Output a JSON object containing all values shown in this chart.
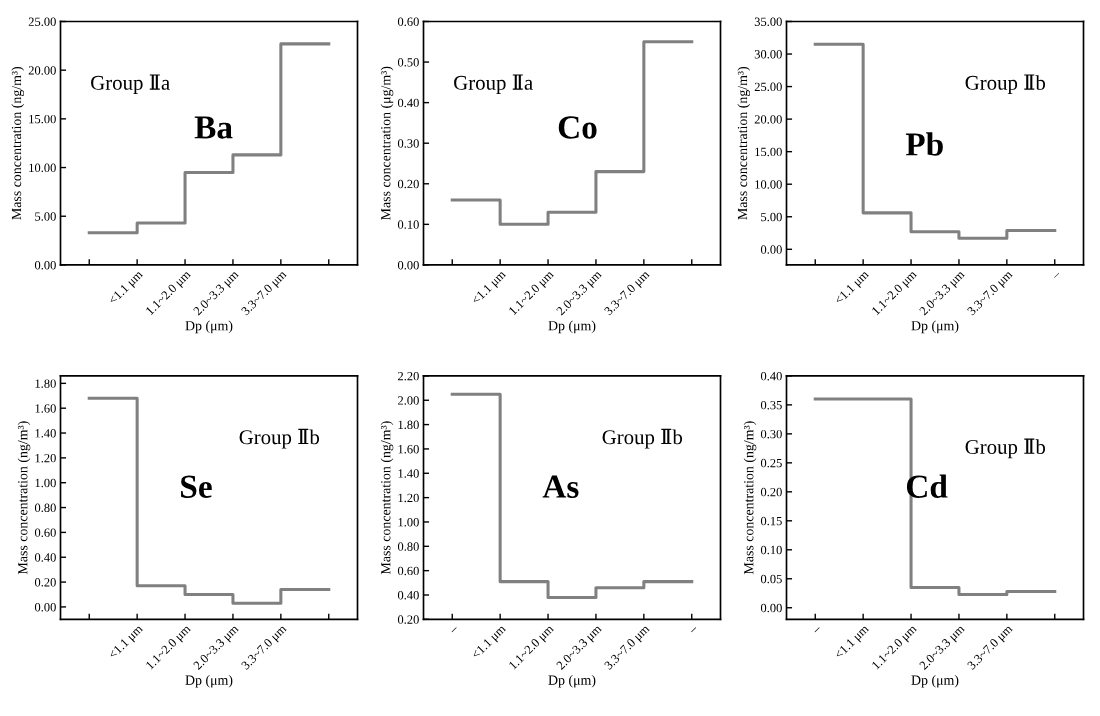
{
  "chart_data": [
    {
      "type": "step",
      "xlabel": "Dp (μm)",
      "ylabel": "Mass concentration (ng/m³)",
      "annotations": [
        "Group Ⅱa",
        "Ba"
      ],
      "categories": [
        null,
        "<1.1 μm",
        "1.1~2.0 μm",
        "2.0~3.3 μm",
        "3.3~7.0 μm",
        null
      ],
      "values": [
        3.3,
        4.3,
        9.5,
        11.3,
        22.7,
        22.7
      ],
      "color": "#808080",
      "ylim": [
        0,
        25
      ],
      "yticks": [
        {
          "value": 0,
          "label": "0.00"
        },
        {
          "value": 5,
          "label": "5.00"
        },
        {
          "value": 10,
          "label": "10.00"
        },
        {
          "value": 15,
          "label": "15.00"
        },
        {
          "value": 20,
          "label": "20.00"
        },
        {
          "value": 25,
          "label": "25.00"
        }
      ]
    },
    {
      "type": "step",
      "xlabel": "Dp (μm)",
      "ylabel": "Mass concentration (μg/m³)",
      "annotations": [
        "Group Ⅱa",
        "Co"
      ],
      "categories": [
        null,
        "<1.1 μm",
        "1.1~2.0 μm",
        "2.0~3.3 μm",
        "3.3~7.0 μm",
        null
      ],
      "values": [
        0.16,
        0.1,
        0.13,
        0.23,
        0.55,
        0.55
      ],
      "color": "#808080",
      "ylim": [
        0,
        0.6
      ],
      "yticks": [
        {
          "value": 0,
          "label": "0.00"
        },
        {
          "value": 0.1,
          "label": "0.10"
        },
        {
          "value": 0.2,
          "label": "0.20"
        },
        {
          "value": 0.3,
          "label": "0.30"
        },
        {
          "value": 0.4,
          "label": "0.40"
        },
        {
          "value": 0.5,
          "label": "0.50"
        },
        {
          "value": 0.6,
          "label": "0.60"
        }
      ]
    },
    {
      "type": "step",
      "xlabel": "Dp (μm)",
      "ylabel": "Mass concentration (ng/m³)",
      "annotations": [
        "Group Ⅱb",
        "Pb"
      ],
      "categories": [
        null,
        "<1.1 μm",
        "1.1~2.0 μm",
        "2.0~3.3 μm",
        "3.3~7.0 μm",
        "–"
      ],
      "values": [
        31.5,
        5.6,
        2.7,
        1.7,
        2.9,
        2.9
      ],
      "color": "#808080",
      "ylim": [
        -2.4,
        35
      ],
      "yticks": [
        {
          "value": 0,
          "label": "0.00"
        },
        {
          "value": 5,
          "label": "5.00"
        },
        {
          "value": 10,
          "label": "10.00"
        },
        {
          "value": 15,
          "label": "15.00"
        },
        {
          "value": 20,
          "label": "20.00"
        },
        {
          "value": 25,
          "label": "25.00"
        },
        {
          "value": 30,
          "label": "30.00"
        },
        {
          "value": 35,
          "label": "35.00"
        }
      ]
    },
    {
      "type": "step",
      "xlabel": "Dp (μm)",
      "ylabel": "Mass concentration (ng/m³)",
      "annotations": [
        "Group Ⅱb",
        "Se"
      ],
      "categories": [
        null,
        "<1.1 μm",
        "1.1~2.0 μm",
        "2.0~3.3 μm",
        "3.3~7.0 μm",
        null
      ],
      "values": [
        1.68,
        0.17,
        0.1,
        0.03,
        0.14,
        0.14
      ],
      "color": "#808080",
      "ylim": [
        -0.1,
        1.86
      ],
      "yticks": [
        {
          "value": 0,
          "label": "0.00"
        },
        {
          "value": 0.2,
          "label": "0.20"
        },
        {
          "value": 0.4,
          "label": "0.40"
        },
        {
          "value": 0.6,
          "label": "0.60"
        },
        {
          "value": 0.8,
          "label": "0.80"
        },
        {
          "value": 1,
          "label": "1.00"
        },
        {
          "value": 1.2,
          "label": "1.20"
        },
        {
          "value": 1.4,
          "label": "1.40"
        },
        {
          "value": 1.6,
          "label": "1.60"
        },
        {
          "value": 1.8,
          "label": "1.80"
        }
      ]
    },
    {
      "type": "step",
      "xlabel": "Dp (μm)",
      "ylabel": "Mass concentration (ng/m³)",
      "annotations": [
        "Group Ⅱb",
        "As"
      ],
      "categories": [
        "–",
        "<1.1 μm",
        "1.1~2.0 μm",
        "2.0~3.3 μm",
        "3.3~7.0 μm",
        "–"
      ],
      "values": [
        2.05,
        0.51,
        0.38,
        0.46,
        0.51,
        0.51
      ],
      "color": "#808080",
      "ylim": [
        0.2,
        2.2
      ],
      "yticks": [
        {
          "value": 0.2,
          "label": "0.20"
        },
        {
          "value": 0.4,
          "label": "0.40"
        },
        {
          "value": 0.6,
          "label": "0.60"
        },
        {
          "value": 0.8,
          "label": "0.80"
        },
        {
          "value": 1,
          "label": "1.00"
        },
        {
          "value": 1.2,
          "label": "1.20"
        },
        {
          "value": 1.4,
          "label": "1.40"
        },
        {
          "value": 1.6,
          "label": "1.60"
        },
        {
          "value": 1.8,
          "label": "1.80"
        },
        {
          "value": 2,
          "label": "2.00"
        },
        {
          "value": 2.2,
          "label": "2.20"
        }
      ]
    },
    {
      "type": "step",
      "xlabel": "Dp (μm)",
      "ylabel": "Mass concentration (ng/m³)",
      "annotations": [
        "Group Ⅱb",
        "Cd"
      ],
      "categories": [
        "–",
        "<1.1 μm",
        "1.1~2.0 μm",
        "2.0~3.3 μm",
        "3.3~7.0 μm",
        null
      ],
      "values": [
        0.36,
        0.36,
        0.035,
        0.023,
        0.028,
        0.028
      ],
      "color": "#808080",
      "ylim": [
        -0.02,
        0.4
      ],
      "yticks": [
        {
          "value": 0,
          "label": "0.00"
        },
        {
          "value": 0.05,
          "label": "0.05"
        },
        {
          "value": 0.1,
          "label": "0.10"
        },
        {
          "value": 0.15,
          "label": "0.15"
        },
        {
          "value": 0.2,
          "label": "0.20"
        },
        {
          "value": 0.25,
          "label": "0.25"
        },
        {
          "value": 0.3,
          "label": "0.30"
        },
        {
          "value": 0.35,
          "label": "0.35"
        },
        {
          "value": 0.4,
          "label": "0.40"
        }
      ]
    }
  ]
}
